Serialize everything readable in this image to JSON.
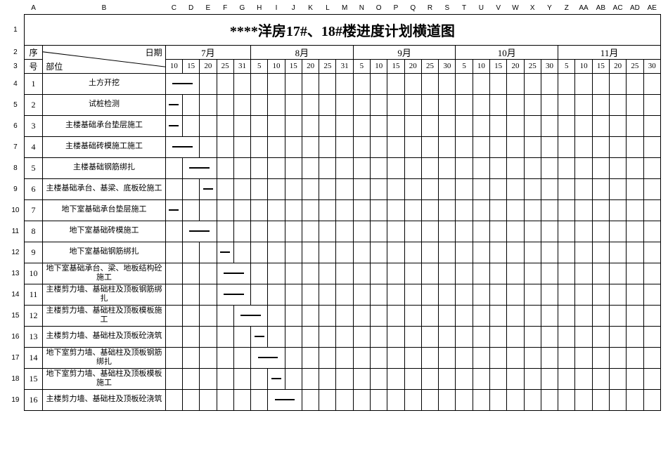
{
  "column_letters": [
    "A",
    "B",
    "C",
    "D",
    "E",
    "F",
    "G",
    "H",
    "I",
    "J",
    "K",
    "L",
    "M",
    "N",
    "O",
    "P",
    "Q",
    "R",
    "S",
    "T",
    "U",
    "V",
    "W",
    "X",
    "Y",
    "Z",
    "AA",
    "AB",
    "AC",
    "AD",
    "AE"
  ],
  "title": "****洋房17#、18#楼进度计划横道图",
  "header": {
    "seq": "序号",
    "seq_top": "序",
    "seq_bottom": "号",
    "date_label": "日期",
    "part_label": "部位"
  },
  "months": [
    {
      "label": "7月",
      "days": [
        "10",
        "15",
        "20",
        "25",
        "31"
      ]
    },
    {
      "label": "8月",
      "days": [
        "5",
        "10",
        "15",
        "20",
        "25",
        "31"
      ]
    },
    {
      "label": "9月",
      "days": [
        "5",
        "10",
        "15",
        "20",
        "25",
        "30"
      ]
    },
    {
      "label": "10月",
      "days": [
        "5",
        "10",
        "15",
        "20",
        "25",
        "30"
      ]
    },
    {
      "label": "11月",
      "days": [
        "5",
        "10",
        "15",
        "20",
        "25",
        "30"
      ]
    }
  ],
  "tasks": [
    {
      "seq": "1",
      "name": "土方开挖",
      "bar_start": 0,
      "bar_span": 2
    },
    {
      "seq": "2",
      "name": "试桩检测",
      "bar_start": 0,
      "bar_span": 1
    },
    {
      "seq": "3",
      "name": "主楼基础承台垫层施工",
      "bar_start": 0,
      "bar_span": 1
    },
    {
      "seq": "4",
      "name": "主楼基础砖模施工施工",
      "bar_start": 0,
      "bar_span": 2
    },
    {
      "seq": "5",
      "name": "主楼基础钢筋绑扎",
      "bar_start": 1,
      "bar_span": 2
    },
    {
      "seq": "6",
      "name": "主楼基础承台、基梁、底板砼施工",
      "bar_start": 2,
      "bar_span": 1
    },
    {
      "seq": "7",
      "name": "地下室基础承台垫层施工",
      "bar_start": 0,
      "bar_span": 1
    },
    {
      "seq": "8",
      "name": "地下室基础砖模施工",
      "bar_start": 1,
      "bar_span": 2
    },
    {
      "seq": "9",
      "name": "地下室基础钢筋绑扎",
      "bar_start": 3,
      "bar_span": 1
    },
    {
      "seq": "10",
      "name": "地下室基础承台、梁、地板结构砼施工",
      "bar_start": 3,
      "bar_span": 2
    },
    {
      "seq": "11",
      "name": "主楼剪力墙、基础柱及顶板钢筋绑扎",
      "bar_start": 3,
      "bar_span": 2
    },
    {
      "seq": "12",
      "name": "主楼剪力墙、基础柱及顶板模板施工",
      "bar_start": 4,
      "bar_span": 2
    },
    {
      "seq": "13",
      "name": "主楼剪力墙、基础柱及顶板砼浇筑",
      "bar_start": 5,
      "bar_span": 1
    },
    {
      "seq": "14",
      "name": "地下室剪力墙、基础柱及顶板钢筋绑扎",
      "bar_start": 5,
      "bar_span": 2
    },
    {
      "seq": "15",
      "name": "地下室剪力墙、基础柱及顶板模板施工",
      "bar_start": 6,
      "bar_span": 1
    },
    {
      "seq": "16",
      "name": "主楼剪力墙、基础柱及顶板砼浇筑",
      "bar_start": 6,
      "bar_span": 2
    }
  ],
  "total_day_cols": 29,
  "row_numbers": [
    "1",
    "2",
    "3",
    "4",
    "5",
    "6",
    "7",
    "8",
    "9",
    "10",
    "11",
    "12",
    "13",
    "14",
    "15",
    "16",
    "17",
    "18",
    "19"
  ],
  "styling": {
    "background_color": "#ffffff",
    "border_color": "#000000",
    "bar_color": "#000000",
    "title_fontsize": 20,
    "task_fontsize": 11,
    "day_fontsize": 11,
    "month_fontsize": 13
  }
}
